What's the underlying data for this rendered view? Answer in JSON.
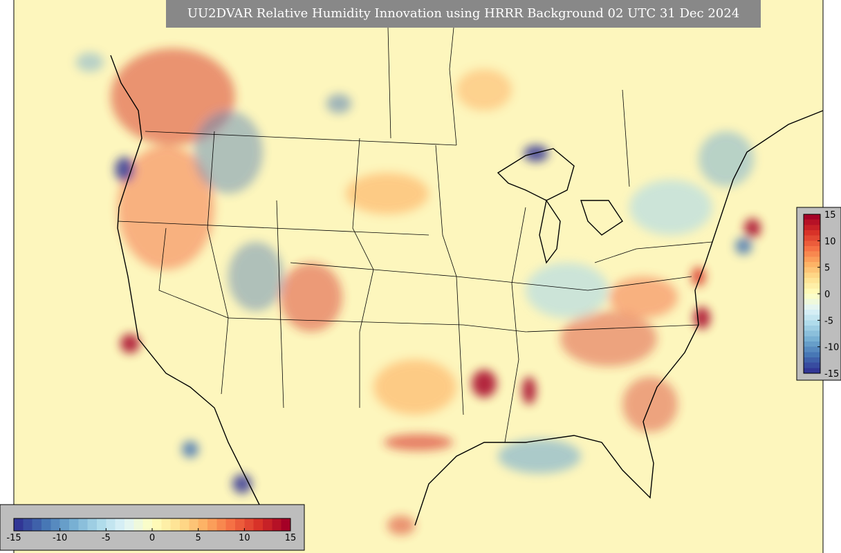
{
  "title": "UU2DVAR Relative Humidity Innovation using HRRR Background 02 UTC 31 Dec 2024",
  "colormap": [
    "#313695",
    "#4575b4",
    "#74add1",
    "#abd9e9",
    "#e0f3f8",
    "#ffffbf",
    "#fee090",
    "#fdae61",
    "#f46d43",
    "#d73027",
    "#a50026"
  ],
  "colorbars": [
    {
      "orientation": "horizontal",
      "lim": [
        -15,
        15
      ],
      "ticks": [
        -15,
        -10,
        -5,
        0,
        5,
        10,
        15
      ]
    },
    {
      "orientation": "vertical",
      "lim": [
        -15,
        15
      ],
      "ticks": [
        -15,
        -10,
        -5,
        0,
        5,
        10,
        15
      ]
    }
  ]
}
